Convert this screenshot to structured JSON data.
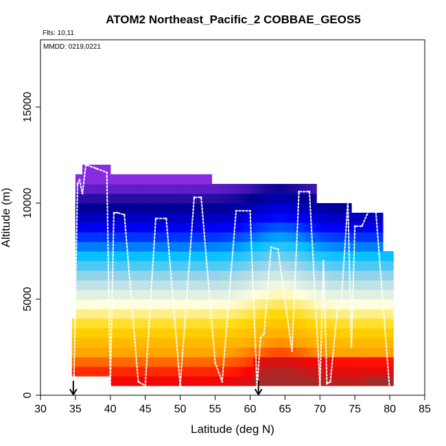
{
  "chart_data": {
    "type": "heatmap",
    "title": "ATOM2 Northeast_Pacific_2 COBBAE_GEOS5",
    "note_flights": "Flts: 10,11",
    "note_dates": "MMDD: 0219,0221",
    "xlabel": "Latitude (deg N)",
    "ylabel": "Altitude (m)",
    "xlim": [
      30,
      85
    ],
    "ylim": [
      0,
      18500
    ],
    "x_ticks": [
      "30",
      "35",
      "40",
      "45",
      "50",
      "55",
      "60",
      "65",
      "70",
      "75",
      "80",
      "85"
    ],
    "y_ticks": [
      "0",
      "5000",
      "10000",
      "15000"
    ],
    "grid": false,
    "legend": "none",
    "colors": {
      "dark_red": "#a52a2a",
      "red": "#ff0000",
      "orange": "#ffa500",
      "yellow": "#ffd700",
      "pale_yellow": "#ffffe0",
      "light_blue": "#add8e6",
      "sky_blue": "#00bfff",
      "blue": "#0000ff",
      "navy": "#00008b",
      "violet": "#8a2be2",
      "flight_track": "#ffffff",
      "arrow": "#000000"
    },
    "altitude_bins_m": [
      0,
      1000,
      2000,
      3000,
      4000,
      5000,
      6000,
      7000,
      8000,
      9000,
      10000,
      11000,
      12000
    ],
    "column_coverage": [
      {
        "from_lat": 34.5,
        "to_lat": 35.3,
        "alt_min": 1000,
        "alt_max": 4000
      },
      {
        "from_lat": 35.0,
        "to_lat": 40.0,
        "alt_min": 1000,
        "alt_max": 11500
      },
      {
        "from_lat": 36.0,
        "to_lat": 40.0,
        "alt_min": 1000,
        "alt_max": 12000
      },
      {
        "from_lat": 40.0,
        "to_lat": 54.5,
        "alt_min": 500,
        "alt_max": 11500
      },
      {
        "from_lat": 54.5,
        "to_lat": 69.5,
        "alt_min": 500,
        "alt_max": 11000
      },
      {
        "from_lat": 69.5,
        "to_lat": 74.5,
        "alt_min": 500,
        "alt_max": 10000
      },
      {
        "from_lat": 74.5,
        "to_lat": 79.0,
        "alt_min": 500,
        "alt_max": 9500
      },
      {
        "from_lat": 79.0,
        "to_lat": 80.5,
        "alt_min": 500,
        "alt_max": 7500
      }
    ],
    "flight_track": {
      "lat": [
        34.8,
        35.3,
        35.6,
        36.0,
        36.5,
        38.0,
        39.5,
        40.0,
        40.5,
        41.0,
        42.0,
        44.0,
        45.0,
        46.5,
        48.0,
        50.0,
        52.0,
        53.0,
        55.0,
        56.0,
        58.0,
        60.0,
        61.0,
        61.5,
        62.0,
        63.0,
        64.0,
        66.0,
        67.0,
        68.5,
        70.0,
        70.5,
        71.0,
        71.5,
        72.5,
        73.0,
        74.0,
        74.5,
        75.0,
        76.0,
        77.0,
        78.0,
        80.0
      ],
      "alt": [
        1000,
        11000,
        11200,
        10500,
        12000,
        11800,
        11600,
        500,
        9500,
        9500,
        9400,
        700,
        500,
        9200,
        9200,
        500,
        10300,
        10300,
        1700,
        700,
        9600,
        9600,
        400,
        3000,
        3200,
        7700,
        7600,
        2300,
        10600,
        10600,
        500,
        7000,
        600,
        700,
        4500,
        4500,
        10100,
        2500,
        8800,
        8800,
        9600,
        9600,
        200
      ]
    },
    "arrow_markers_lat": [
      34.7,
      61.2
    ]
  }
}
